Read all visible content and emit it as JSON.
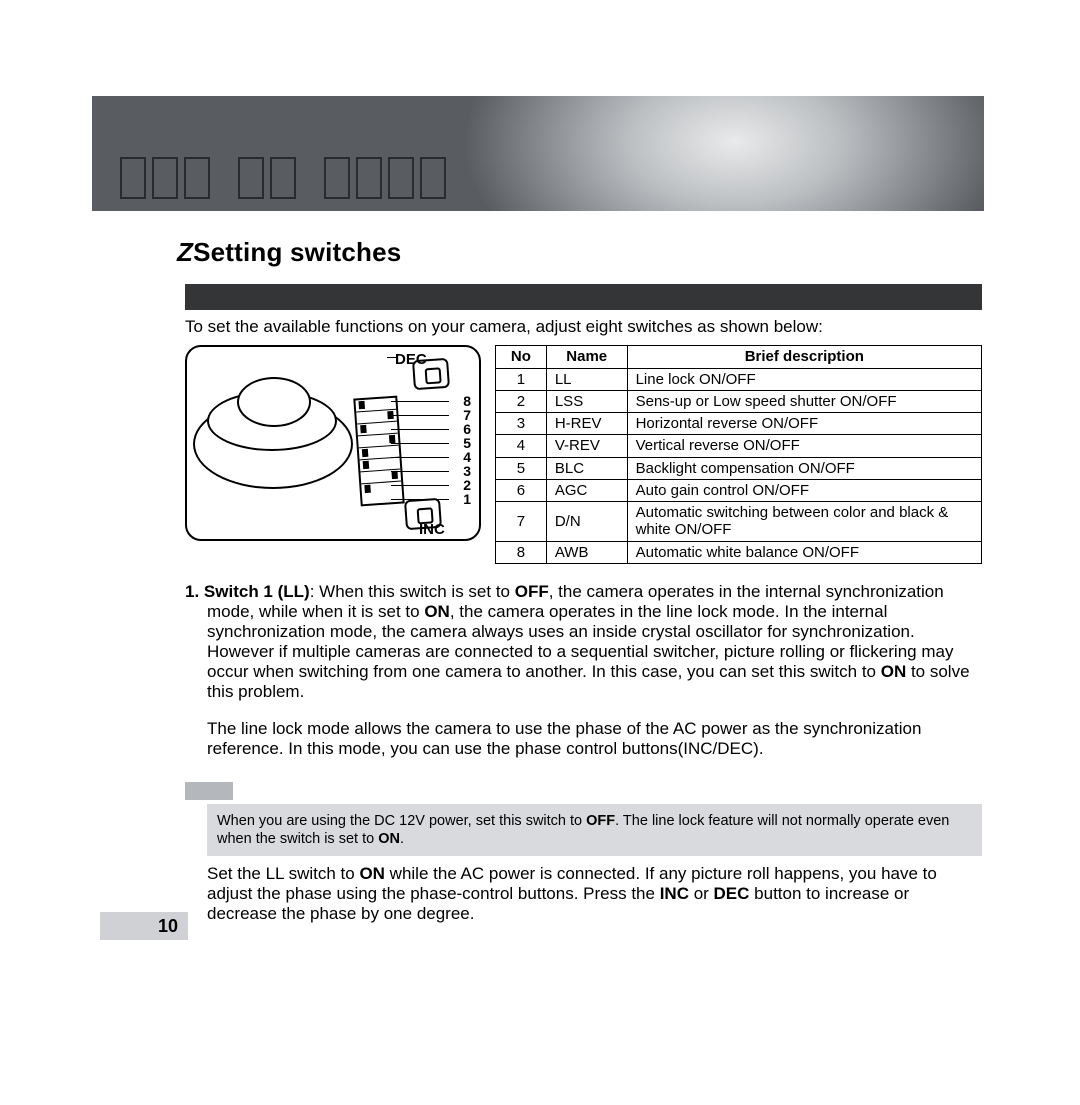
{
  "section_title": "Setting switches",
  "intro": "To set the available functions on your camera, adjust eight switches as shown below:",
  "figure": {
    "dec_label": "DEC",
    "inc_label": "INC",
    "numbers": [
      "8",
      "7",
      "6",
      "5",
      "4",
      "3",
      "2",
      "1"
    ]
  },
  "switch_table": {
    "columns": [
      "No",
      "Name",
      "Brief description"
    ],
    "rows": [
      [
        "1",
        "LL",
        "Line lock ON/OFF"
      ],
      [
        "2",
        "LSS",
        "Sens-up or Low speed shutter ON/OFF"
      ],
      [
        "3",
        "H-REV",
        "Horizontal reverse ON/OFF"
      ],
      [
        "4",
        "V-REV",
        "Vertical reverse ON/OFF"
      ],
      [
        "5",
        "BLC",
        "Backlight compensation ON/OFF"
      ],
      [
        "6",
        "AGC",
        "Auto gain control ON/OFF"
      ],
      [
        "7",
        "D/N",
        "Automatic switching between color and black & white ON/OFF"
      ],
      [
        "8",
        "AWB",
        "Automatic white balance ON/OFF"
      ]
    ]
  },
  "body": {
    "item_number": "1.",
    "item_label": "Switch 1 (LL)",
    "p1_a": ": When this switch is set to ",
    "off": "OFF",
    "p1_b": ", the camera operates in the internal synchronization mode, while when it is set to ",
    "on": "ON",
    "p1_c": ", the camera operates in the line lock mode. In the internal synchronization mode, the camera always uses an inside crystal oscillator for synchronization. However if multiple cameras are connected to a sequential switcher, picture rolling or flickering may occur when switching from one camera to another. In this case, you can set this switch to ",
    "p1_d": " to solve this problem.",
    "p2": "The line lock mode allows the camera to use the phase of the AC power as the synchronization reference. In this mode, you can use the phase control buttons(INC/DEC)."
  },
  "note": {
    "a": "When you are using the DC 12V power, set this switch to ",
    "off": "OFF",
    "b": ". The line lock feature will not normally operate even when the switch is set to ",
    "on": "ON",
    "c": "."
  },
  "after_note": {
    "a": "Set the LL switch to ",
    "on": "ON",
    "b": " while the AC power is connected. If any picture roll happens, you have to adjust the phase using the phase-control buttons. Press the ",
    "inc": "INC",
    "c": " or ",
    "dec": "DEC",
    "d": " button to increase or decrease the phase by one degree."
  },
  "page_number": "10",
  "colors": {
    "dark_bar": "#333537",
    "note_bg": "#d8dadd",
    "page_num_bg": "#cfd1d4"
  }
}
